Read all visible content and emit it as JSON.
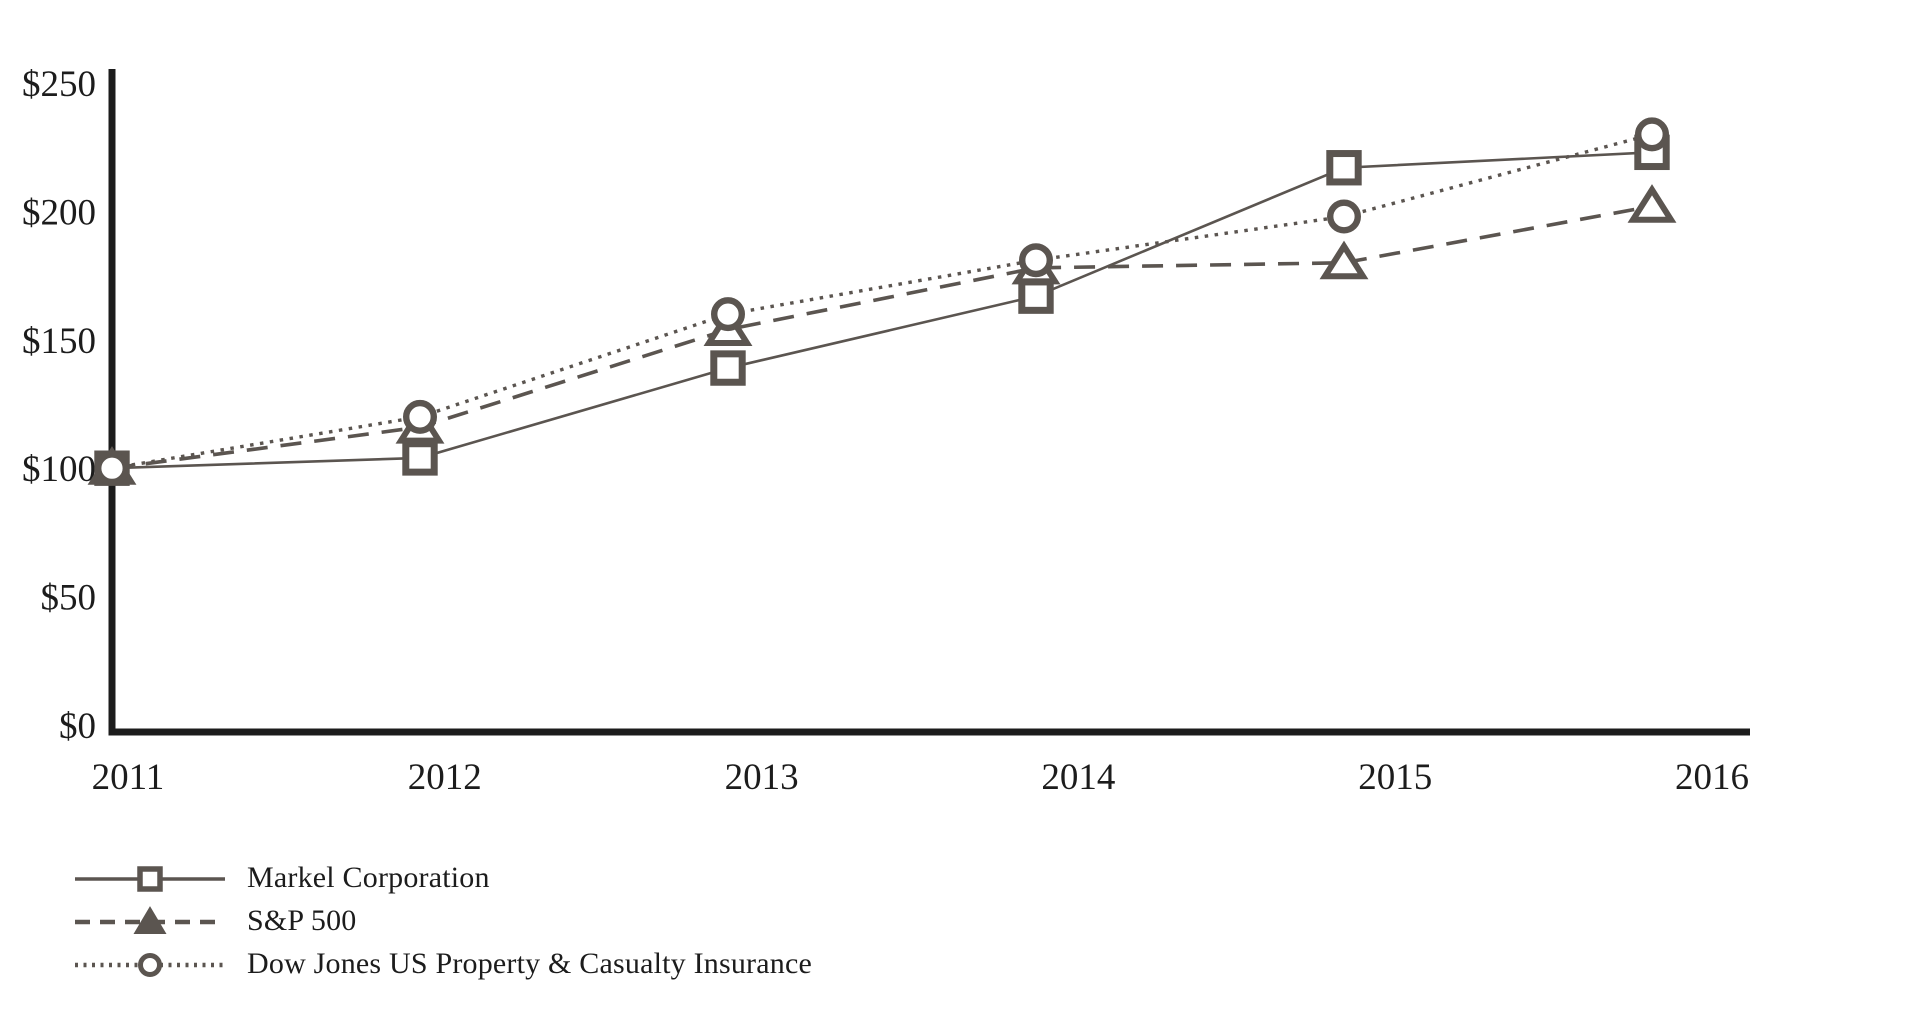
{
  "chart_data": {
    "type": "line",
    "title": "",
    "xlabel": "",
    "ylabel": "",
    "x": [
      2011,
      2012,
      2013,
      2014,
      2015,
      2016
    ],
    "x_tick_labels": [
      "2011",
      "2012",
      "2013",
      "2014",
      "2015",
      "2016"
    ],
    "y_ticks": [
      0,
      50,
      100,
      150,
      200,
      250
    ],
    "y_tick_labels": [
      "$0",
      "$50",
      "$100",
      "$150",
      "$200",
      "$250"
    ],
    "ylim": [
      0,
      250
    ],
    "grid": false,
    "legend_position": "bottom-left",
    "series": [
      {
        "name": "Markel Corporation",
        "marker": "square",
        "line_style": "solid",
        "values": [
          100,
          104,
          139,
          167,
          217,
          223
        ]
      },
      {
        "name": "S&P 500",
        "marker": "triangle",
        "line_style": "dashed",
        "values": [
          100,
          116,
          154,
          178,
          180,
          202
        ]
      },
      {
        "name": "Dow Jones US Property & Casualty Insurance",
        "marker": "circle",
        "line_style": "dotted",
        "values": [
          100,
          120,
          160,
          181,
          198,
          230
        ]
      }
    ],
    "colors": {
      "series_gray": "#5b5550",
      "axis_black": "#1c1c1c",
      "background": "#ffffff",
      "marker_fill": "#ffffff"
    }
  }
}
